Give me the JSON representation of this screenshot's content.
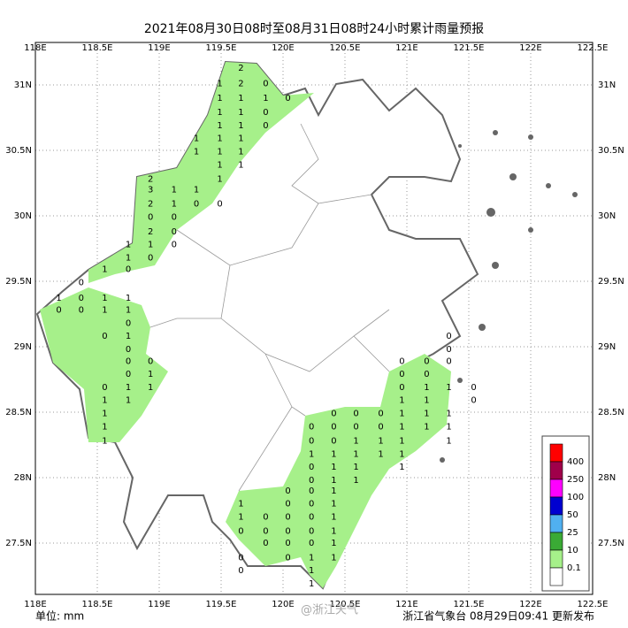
{
  "title": "2021年08月30日08时至08月31日08时24小时累计雨量预报",
  "lon_ticks": [
    {
      "value": 118,
      "label": "118E"
    },
    {
      "value": 118.5,
      "label": "118.5E"
    },
    {
      "value": 119,
      "label": "119E"
    },
    {
      "value": 119.5,
      "label": "119.5E"
    },
    {
      "value": 120,
      "label": "120E"
    },
    {
      "value": 120.5,
      "label": "120.5E"
    },
    {
      "value": 121,
      "label": "121E"
    },
    {
      "value": 121.5,
      "label": "121.5E"
    },
    {
      "value": 122,
      "label": "122E"
    },
    {
      "value": 122.5,
      "label": "122.5E"
    }
  ],
  "lat_ticks": [
    {
      "value": 31,
      "label": "31N"
    },
    {
      "value": 30.5,
      "label": "30.5N"
    },
    {
      "value": 30,
      "label": "30N"
    },
    {
      "value": 29.5,
      "label": "29.5N"
    },
    {
      "value": 29,
      "label": "29N"
    },
    {
      "value": 28.5,
      "label": "28.5N"
    },
    {
      "value": 28,
      "label": "28N"
    },
    {
      "value": 27.5,
      "label": "27.5N"
    }
  ],
  "legend": {
    "colors": [
      "#ff0000",
      "#a0004a",
      "#ff00ff",
      "#0000d0",
      "#50b0f0",
      "#3aaa35",
      "#a6f08a",
      "#ffffff"
    ],
    "labels": [
      400,
      250,
      100,
      50,
      25,
      10,
      0.1
    ]
  },
  "stations": [
    {
      "lon": 119.66,
      "lats": [
        31.13,
        31.01,
        30.9,
        30.79,
        30.69,
        30.59,
        30.49,
        30.39
      ],
      "values": [
        2,
        2,
        1,
        1,
        1,
        1,
        1,
        1
      ]
    },
    {
      "lon": 119.86,
      "lats": [
        31.01,
        30.9,
        30.79,
        30.69
      ],
      "values": [
        0,
        1,
        0,
        0
      ]
    },
    {
      "lon": 120.04,
      "lats": [
        30.9
      ],
      "values": [
        0
      ]
    },
    {
      "lon": 119.49,
      "lats": [
        31.01,
        30.9,
        30.79,
        30.69,
        30.59,
        30.49,
        30.39,
        30.28,
        30.09
      ],
      "values": [
        1,
        1,
        1,
        1,
        1,
        1,
        1,
        1,
        0
      ]
    },
    {
      "lon": 119.3,
      "lats": [
        30.59,
        30.49,
        30.2,
        30.09
      ],
      "values": [
        1,
        1,
        1,
        0
      ]
    },
    {
      "lon": 119.12,
      "lats": [
        30.2,
        30.09,
        29.99,
        29.88,
        29.78
      ],
      "values": [
        1,
        1,
        0,
        0,
        0
      ]
    },
    {
      "lon": 118.93,
      "lats": [
        30.28,
        30.2,
        30.09,
        29.99,
        29.88,
        29.78,
        29.68,
        28.89,
        28.79,
        28.69
      ],
      "values": [
        2,
        3,
        2,
        0,
        2,
        1,
        0,
        0,
        1,
        1
      ]
    },
    {
      "lon": 118.75,
      "lats": [
        29.78,
        29.68,
        29.59,
        29.37,
        29.28,
        29.18,
        29.08,
        28.98,
        28.89,
        28.79,
        28.69,
        28.59
      ],
      "values": [
        1,
        1,
        0,
        1,
        1,
        0,
        1,
        0,
        0,
        0,
        1,
        1
      ]
    },
    {
      "lon": 118.56,
      "lats": [
        29.59,
        29.37,
        29.28,
        29.08,
        28.69,
        28.59,
        28.49,
        28.39,
        28.28
      ],
      "values": [
        1,
        1,
        1,
        0,
        0,
        1,
        1,
        1,
        1
      ]
    },
    {
      "lon": 118.37,
      "lats": [
        29.49,
        29.37,
        29.28
      ],
      "values": [
        0,
        0,
        0
      ]
    },
    {
      "lon": 118.19,
      "lats": [
        29.37,
        29.28
      ],
      "values": [
        1,
        0
      ]
    },
    {
      "lon": 120.23,
      "lats": [
        28.39,
        28.28,
        28.18,
        28.08,
        27.98,
        27.9,
        27.8,
        27.7,
        27.59,
        27.5,
        27.39,
        27.29,
        27.19
      ],
      "values": [
        0,
        0,
        1,
        0,
        0,
        0,
        0,
        0,
        0,
        0,
        1,
        1,
        1
      ]
    },
    {
      "lon": 120.41,
      "lats": [
        28.49,
        28.39,
        28.28,
        28.18,
        28.08,
        27.98,
        27.9,
        27.8,
        27.7,
        27.59,
        27.5,
        27.39
      ],
      "values": [
        0,
        0,
        0,
        1,
        1,
        1,
        1,
        1,
        1,
        1,
        1,
        1
      ]
    },
    {
      "lon": 120.59,
      "lats": [
        28.49,
        28.39,
        28.28,
        28.18,
        28.08,
        27.98
      ],
      "values": [
        0,
        0,
        1,
        1,
        1,
        1
      ]
    },
    {
      "lon": 120.79,
      "lats": [
        28.49,
        28.39,
        28.28,
        28.18
      ],
      "values": [
        0,
        0,
        1,
        1
      ]
    },
    {
      "lon": 120.96,
      "lats": [
        28.89,
        28.79,
        28.69,
        28.59,
        28.49,
        28.39,
        28.28,
        28.18,
        28.08
      ],
      "values": [
        0,
        0,
        0,
        1,
        1,
        1,
        1,
        1,
        1
      ]
    },
    {
      "lon": 121.16,
      "lats": [
        28.89,
        28.79,
        28.69,
        28.59,
        28.49,
        28.39
      ],
      "values": [
        0,
        0,
        1,
        1,
        1,
        1
      ]
    },
    {
      "lon": 121.34,
      "lats": [
        29.08,
        28.98,
        28.89,
        28.69,
        28.49,
        28.39,
        28.28
      ],
      "values": [
        0,
        0,
        0,
        1,
        1,
        1,
        1
      ]
    },
    {
      "lon": 121.54,
      "lats": [
        28.69,
        28.59
      ],
      "values": [
        0,
        0
      ]
    },
    {
      "lon": 120.04,
      "lats": [
        27.9,
        27.8,
        27.7,
        27.59,
        27.5,
        27.39
      ],
      "values": [
        0,
        0,
        0,
        0,
        0,
        0
      ]
    },
    {
      "lon": 119.86,
      "lats": [
        27.7,
        27.59,
        27.5
      ],
      "values": [
        0,
        0,
        0
      ]
    },
    {
      "lon": 119.66,
      "lats": [
        27.8,
        27.7,
        27.59,
        27.39,
        27.29
      ],
      "values": [
        1,
        1,
        0,
        0,
        0
      ]
    }
  ],
  "footer": {
    "unit": "单位: mm",
    "watermark": "@浙江天气",
    "issuer": "浙江省气象台 08月29日09:41 更新发布"
  }
}
